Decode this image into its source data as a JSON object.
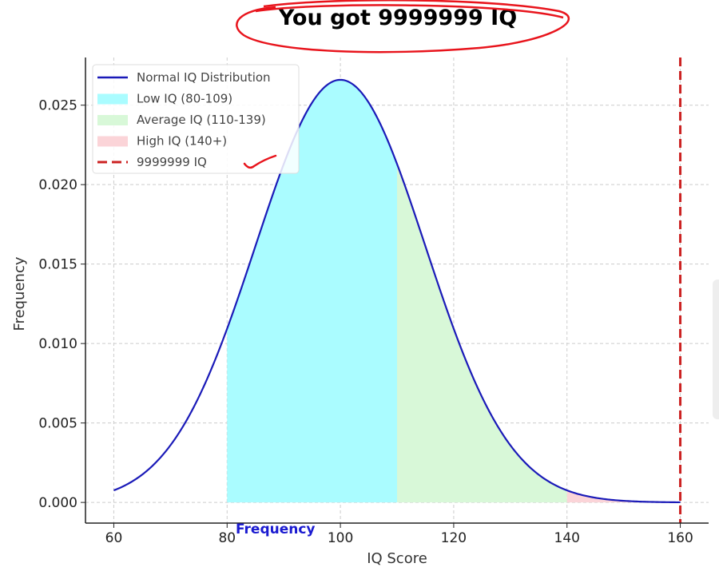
{
  "chart_data": {
    "type": "area",
    "title": "You got 9999999 IQ",
    "xlabel": "IQ Score",
    "ylabel": "Frequency",
    "xlim": [
      55,
      165
    ],
    "ylim": [
      -0.0013,
      0.028
    ],
    "xticks": [
      60,
      80,
      100,
      120,
      140,
      160
    ],
    "yticks": [
      "0.000",
      "0.005",
      "0.010",
      "0.015",
      "0.020",
      "0.025"
    ],
    "grid": true,
    "legend_position": "top-left",
    "series": [
      {
        "name": "Normal IQ Distribution",
        "kind": "line",
        "distribution": "normal",
        "mean": 100,
        "sd": 15,
        "x_range": [
          60,
          160
        ],
        "color": "#1a1ab8"
      },
      {
        "name": "Low IQ (80-109)",
        "kind": "fill",
        "x_range": [
          80,
          110
        ],
        "color": "#aafcff"
      },
      {
        "name": "Average IQ (110-139)",
        "kind": "fill",
        "x_range": [
          110,
          140
        ],
        "color": "#d8f8d8"
      },
      {
        "name": "High IQ (140+)",
        "kind": "fill",
        "x_range": [
          140,
          160
        ],
        "color": "#fbd4d8"
      },
      {
        "name": "9999999 IQ",
        "kind": "vline",
        "x": 160,
        "color": "#cc2222"
      }
    ],
    "annotations": [
      {
        "text": "Frequency",
        "color": "#1a1ad0"
      }
    ]
  }
}
